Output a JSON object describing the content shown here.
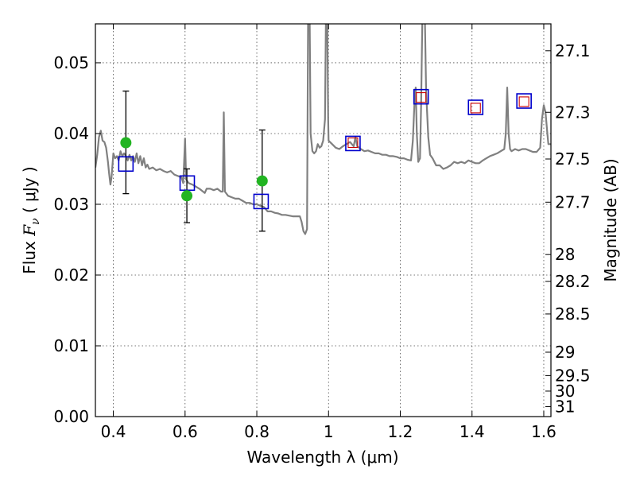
{
  "chart_data": {
    "type": "line",
    "title": "",
    "xlabel": "Wavelength  λ (μm)",
    "ylabel": "Flux  F_ν  ( μJy )",
    "ylabel_parts": {
      "prefix": "Flux  ",
      "symbol": "F",
      "subscript": "ν",
      "units": "  ( μJy )"
    },
    "y2label": "Magnitude (AB)",
    "xlim": [
      0.35,
      1.62
    ],
    "ylim": [
      0.0,
      0.0555
    ],
    "grid": true,
    "x_ticks": [
      0.4,
      0.6,
      0.8,
      1.0,
      1.2,
      1.4,
      1.6
    ],
    "x_tick_labels": [
      "0.4",
      "0.6",
      "0.8",
      "1",
      "1.2",
      "1.4",
      "1.6"
    ],
    "y_ticks": [
      0.0,
      0.01,
      0.02,
      0.03,
      0.04,
      0.05
    ],
    "y_tick_labels": [
      "0.00",
      "0.01",
      "0.02",
      "0.03",
      "0.04",
      "0.05"
    ],
    "y2_ticks": [
      {
        "label": "27.1",
        "flux": 0.0517
      },
      {
        "label": "27.3",
        "flux": 0.043
      },
      {
        "label": "27.5",
        "flux": 0.0364
      },
      {
        "label": "27.7",
        "flux": 0.0303
      },
      {
        "label": "28",
        "flux": 0.0229
      },
      {
        "label": "28.2",
        "flux": 0.0191
      },
      {
        "label": "28.5",
        "flux": 0.0145
      },
      {
        "label": "29",
        "flux": 0.0091
      },
      {
        "label": "29.5",
        "flux": 0.0058
      },
      {
        "label": "30",
        "flux": 0.0036
      },
      {
        "label": "31",
        "flux": 0.0014
      }
    ],
    "series": [
      {
        "name": "model_spectrum",
        "style": "line",
        "color": "#808080",
        "points": [
          [
            0.35,
            0.0352
          ],
          [
            0.355,
            0.037
          ],
          [
            0.36,
            0.0395
          ],
          [
            0.365,
            0.0404
          ],
          [
            0.37,
            0.039
          ],
          [
            0.375,
            0.0388
          ],
          [
            0.38,
            0.038
          ],
          [
            0.385,
            0.036
          ],
          [
            0.388,
            0.0345
          ],
          [
            0.392,
            0.0328
          ],
          [
            0.395,
            0.0338
          ],
          [
            0.4,
            0.0372
          ],
          [
            0.405,
            0.0365
          ],
          [
            0.41,
            0.0368
          ],
          [
            0.415,
            0.0362
          ],
          [
            0.42,
            0.0375
          ],
          [
            0.425,
            0.0368
          ],
          [
            0.43,
            0.0372
          ],
          [
            0.435,
            0.0368
          ],
          [
            0.44,
            0.0362
          ],
          [
            0.445,
            0.037
          ],
          [
            0.45,
            0.0362
          ],
          [
            0.455,
            0.0368
          ],
          [
            0.46,
            0.036
          ],
          [
            0.465,
            0.0372
          ],
          [
            0.47,
            0.0358
          ],
          [
            0.475,
            0.0368
          ],
          [
            0.48,
            0.0355
          ],
          [
            0.485,
            0.0365
          ],
          [
            0.49,
            0.0352
          ],
          [
            0.495,
            0.0356
          ],
          [
            0.5,
            0.035
          ],
          [
            0.51,
            0.0352
          ],
          [
            0.52,
            0.0348
          ],
          [
            0.53,
            0.035
          ],
          [
            0.54,
            0.0347
          ],
          [
            0.55,
            0.0345
          ],
          [
            0.56,
            0.0347
          ],
          [
            0.57,
            0.0342
          ],
          [
            0.58,
            0.034
          ],
          [
            0.59,
            0.0338
          ],
          [
            0.595,
            0.033
          ],
          [
            0.6,
            0.0393
          ],
          [
            0.603,
            0.0335
          ],
          [
            0.61,
            0.033
          ],
          [
            0.62,
            0.0328
          ],
          [
            0.63,
            0.0325
          ],
          [
            0.64,
            0.0322
          ],
          [
            0.65,
            0.0318
          ],
          [
            0.655,
            0.0316
          ],
          [
            0.66,
            0.0322
          ],
          [
            0.67,
            0.0322
          ],
          [
            0.68,
            0.032
          ],
          [
            0.69,
            0.0322
          ],
          [
            0.7,
            0.0318
          ],
          [
            0.705,
            0.0318
          ],
          [
            0.708,
            0.043
          ],
          [
            0.711,
            0.0318
          ],
          [
            0.72,
            0.0312
          ],
          [
            0.73,
            0.031
          ],
          [
            0.74,
            0.0308
          ],
          [
            0.75,
            0.0308
          ],
          [
            0.76,
            0.0305
          ],
          [
            0.77,
            0.0302
          ],
          [
            0.78,
            0.0302
          ],
          [
            0.79,
            0.03
          ],
          [
            0.8,
            0.03
          ],
          [
            0.81,
            0.0298
          ],
          [
            0.82,
            0.0296
          ],
          [
            0.83,
            0.029
          ],
          [
            0.84,
            0.029
          ],
          [
            0.85,
            0.0288
          ],
          [
            0.86,
            0.0287
          ],
          [
            0.87,
            0.0285
          ],
          [
            0.88,
            0.0285
          ],
          [
            0.89,
            0.0284
          ],
          [
            0.9,
            0.0283
          ],
          [
            0.91,
            0.0283
          ],
          [
            0.92,
            0.0283
          ],
          [
            0.925,
            0.0275
          ],
          [
            0.93,
            0.0262
          ],
          [
            0.935,
            0.0258
          ],
          [
            0.94,
            0.0265
          ],
          [
            0.943,
            0.058
          ],
          [
            0.947,
            0.058
          ],
          [
            0.95,
            0.04
          ],
          [
            0.955,
            0.0375
          ],
          [
            0.96,
            0.0372
          ],
          [
            0.965,
            0.0375
          ],
          [
            0.97,
            0.0385
          ],
          [
            0.975,
            0.038
          ],
          [
            0.98,
            0.0382
          ],
          [
            0.985,
            0.039
          ],
          [
            0.99,
            0.042
          ],
          [
            0.993,
            0.058
          ],
          [
            0.996,
            0.058
          ],
          [
            0.999,
            0.042
          ],
          [
            1.0,
            0.039
          ],
          [
            1.01,
            0.0385
          ],
          [
            1.02,
            0.038
          ],
          [
            1.03,
            0.0378
          ],
          [
            1.04,
            0.0382
          ],
          [
            1.05,
            0.0385
          ],
          [
            1.06,
            0.0388
          ],
          [
            1.07,
            0.0382
          ],
          [
            1.075,
            0.0395
          ],
          [
            1.08,
            0.0382
          ],
          [
            1.09,
            0.0378
          ],
          [
            1.1,
            0.0375
          ],
          [
            1.11,
            0.0376
          ],
          [
            1.12,
            0.0374
          ],
          [
            1.13,
            0.0372
          ],
          [
            1.14,
            0.0372
          ],
          [
            1.15,
            0.037
          ],
          [
            1.16,
            0.037
          ],
          [
            1.17,
            0.0368
          ],
          [
            1.18,
            0.0368
          ],
          [
            1.19,
            0.0367
          ],
          [
            1.2,
            0.0365
          ],
          [
            1.21,
            0.0365
          ],
          [
            1.22,
            0.0363
          ],
          [
            1.23,
            0.0362
          ],
          [
            1.235,
            0.039
          ],
          [
            1.24,
            0.045
          ],
          [
            1.243,
            0.0465
          ],
          [
            1.246,
            0.04
          ],
          [
            1.25,
            0.036
          ],
          [
            1.255,
            0.0365
          ],
          [
            1.258,
            0.044
          ],
          [
            1.262,
            0.058
          ],
          [
            1.268,
            0.058
          ],
          [
            1.272,
            0.046
          ],
          [
            1.278,
            0.0395
          ],
          [
            1.283,
            0.037
          ],
          [
            1.29,
            0.0365
          ],
          [
            1.3,
            0.0355
          ],
          [
            1.31,
            0.0355
          ],
          [
            1.32,
            0.035
          ],
          [
            1.33,
            0.0352
          ],
          [
            1.34,
            0.0355
          ],
          [
            1.35,
            0.036
          ],
          [
            1.36,
            0.0358
          ],
          [
            1.37,
            0.036
          ],
          [
            1.38,
            0.0358
          ],
          [
            1.39,
            0.0362
          ],
          [
            1.4,
            0.036
          ],
          [
            1.41,
            0.0358
          ],
          [
            1.42,
            0.0358
          ],
          [
            1.43,
            0.0362
          ],
          [
            1.44,
            0.0365
          ],
          [
            1.45,
            0.0368
          ],
          [
            1.46,
            0.037
          ],
          [
            1.47,
            0.0372
          ],
          [
            1.48,
            0.0375
          ],
          [
            1.49,
            0.0378
          ],
          [
            1.494,
            0.04
          ],
          [
            1.498,
            0.0465
          ],
          [
            1.502,
            0.04
          ],
          [
            1.506,
            0.0378
          ],
          [
            1.51,
            0.0375
          ],
          [
            1.52,
            0.0378
          ],
          [
            1.53,
            0.0376
          ],
          [
            1.54,
            0.0378
          ],
          [
            1.55,
            0.0378
          ],
          [
            1.56,
            0.0376
          ],
          [
            1.57,
            0.0374
          ],
          [
            1.58,
            0.0374
          ],
          [
            1.59,
            0.038
          ],
          [
            1.595,
            0.042
          ],
          [
            1.6,
            0.044
          ],
          [
            1.605,
            0.043
          ],
          [
            1.61,
            0.04
          ],
          [
            1.613,
            0.0385
          ],
          [
            1.62,
            0.0385
          ]
        ]
      },
      {
        "name": "green_circle_measurements",
        "style": "marker",
        "marker": "circle",
        "color": "#22b422",
        "points": [
          {
            "x": 0.435,
            "y": 0.0387,
            "yerr_low": 0.0315,
            "yerr_high": 0.046
          },
          {
            "x": 0.605,
            "y": 0.0312,
            "yerr_low": 0.0274,
            "yerr_high": 0.035
          },
          {
            "x": 0.815,
            "y": 0.0333,
            "yerr_low": 0.0262,
            "yerr_high": 0.0405
          }
        ]
      },
      {
        "name": "blue_square_model_photometry",
        "style": "marker",
        "marker": "square",
        "color": "#0000cc",
        "points": [
          {
            "x": 0.435,
            "y": 0.0357
          },
          {
            "x": 0.606,
            "y": 0.033
          },
          {
            "x": 0.812,
            "y": 0.0304
          },
          {
            "x": 1.068,
            "y": 0.0386
          },
          {
            "x": 1.258,
            "y": 0.0452
          },
          {
            "x": 1.41,
            "y": 0.0437
          },
          {
            "x": 1.545,
            "y": 0.0446
          }
        ]
      },
      {
        "name": "red_square_measurements",
        "style": "marker",
        "marker": "square",
        "color": "#cc0000",
        "points": [
          {
            "x": 1.068,
            "y": 0.0387
          },
          {
            "x": 1.258,
            "y": 0.0451
          },
          {
            "x": 1.41,
            "y": 0.0436
          },
          {
            "x": 1.545,
            "y": 0.0445
          }
        ]
      }
    ]
  }
}
